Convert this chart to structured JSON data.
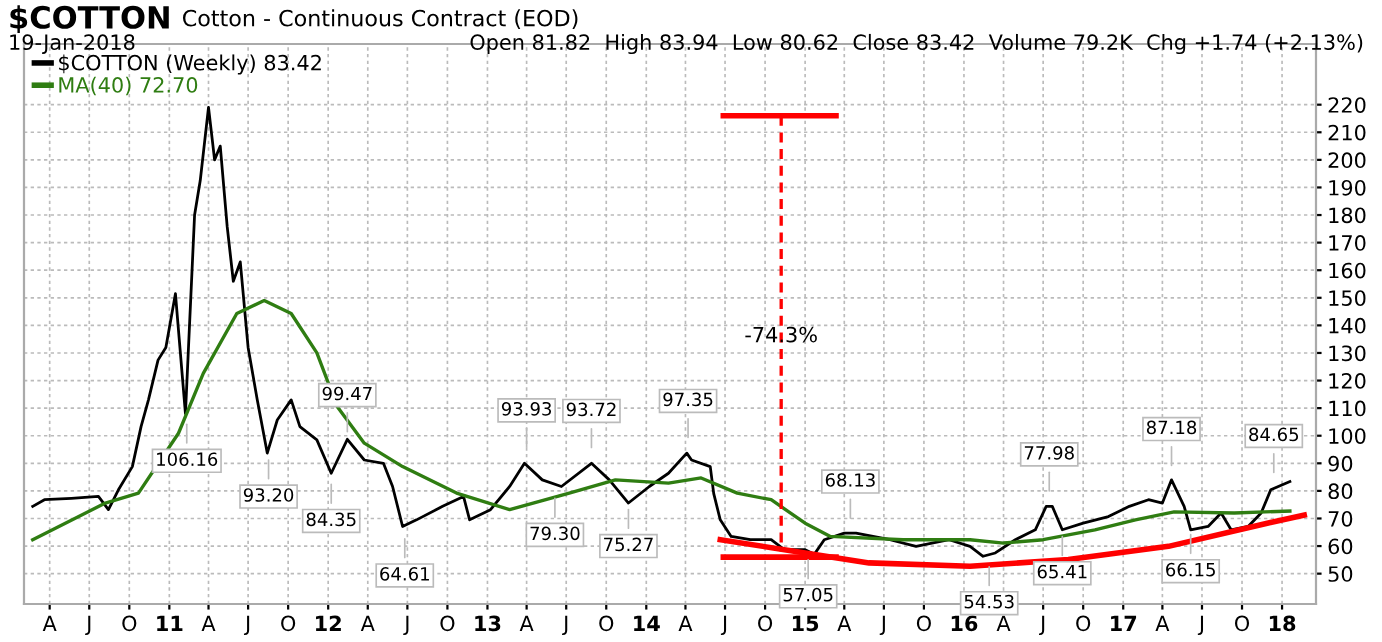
{
  "chart_data": {
    "type": "line",
    "title": "$COTTON",
    "subtitle": "Cotton - Continuous Contract (EOD)",
    "annotations": [
      "19-Jan-2018",
      "Open 81.82  High 83.94  Low 80.62  Close 83.42  Volume 79.2K  Chg +1.74 (+2.13%)",
      {
        "text": "106.16",
        "x": "2011-02-10",
        "y": 106.16
      },
      {
        "text": "93.20",
        "x": "2011-08-17",
        "y": 93.2
      },
      {
        "text": "84.35",
        "x": "2012-01-08",
        "y": 84.35
      },
      {
        "text": "99.47",
        "x": "2012-02-14",
        "y": 99.47
      },
      {
        "text": "64.61",
        "x": "2012-06-25",
        "y": 64.61
      },
      {
        "text": "93.93",
        "x": "2013-04-01",
        "y": 93.93
      },
      {
        "text": "79.30",
        "x": "2013-06-05",
        "y": 79.3
      },
      {
        "text": "93.72",
        "x": "2013-08-28",
        "y": 93.72
      },
      {
        "text": "75.27",
        "x": "2013-11-21",
        "y": 75.27
      },
      {
        "text": "97.35",
        "x": "2014-04-07",
        "y": 97.35
      },
      {
        "text": "57.05",
        "x": "2015-01-08",
        "y": 57.05
      },
      {
        "text": "68.13",
        "x": "2015-04-15",
        "y": 68.13
      },
      {
        "text": "54.53",
        "x": "2016-02-28",
        "y": 54.53
      },
      {
        "text": "77.98",
        "x": "2016-07-15",
        "y": 77.98
      },
      {
        "text": "65.41",
        "x": "2016-08-14",
        "y": 65.41
      },
      {
        "text": "87.18",
        "x": "2017-04-22",
        "y": 87.18
      },
      {
        "text": "66.15",
        "x": "2017-06-05",
        "y": 66.15
      },
      {
        "text": "84.65",
        "x": "2017-12-13",
        "y": 84.65
      },
      {
        "text": "-74.3%",
        "x": "2014-11-07",
        "y": 136
      }
    ],
    "ylim": [
      39,
      242
    ],
    "yticks": [
      50,
      60,
      70,
      80,
      90,
      100,
      110,
      120,
      130,
      140,
      150,
      160,
      170,
      180,
      190,
      200,
      210,
      220
    ],
    "xlim": [
      "2010-02-01",
      "2018-03-20"
    ],
    "xticks": [
      {
        "value": "2010-04-01",
        "label": "A"
      },
      {
        "value": "2010-07-01",
        "label": "J"
      },
      {
        "value": "2010-10-01",
        "label": "O"
      },
      {
        "value": "2011-01-01",
        "label": "11"
      },
      {
        "value": "2011-04-01",
        "label": "A"
      },
      {
        "value": "2011-07-01",
        "label": "J"
      },
      {
        "value": "2011-10-01",
        "label": "O"
      },
      {
        "value": "2012-01-01",
        "label": "12"
      },
      {
        "value": "2012-04-01",
        "label": "A"
      },
      {
        "value": "2012-07-01",
        "label": "J"
      },
      {
        "value": "2012-10-01",
        "label": "O"
      },
      {
        "value": "2013-01-01",
        "label": "13"
      },
      {
        "value": "2013-04-01",
        "label": "A"
      },
      {
        "value": "2013-07-01",
        "label": "J"
      },
      {
        "value": "2013-10-01",
        "label": "O"
      },
      {
        "value": "2014-01-01",
        "label": "14"
      },
      {
        "value": "2014-04-01",
        "label": "A"
      },
      {
        "value": "2014-07-01",
        "label": "J"
      },
      {
        "value": "2014-10-01",
        "label": "O"
      },
      {
        "value": "2015-01-01",
        "label": "15"
      },
      {
        "value": "2015-04-01",
        "label": "A"
      },
      {
        "value": "2015-07-01",
        "label": "J"
      },
      {
        "value": "2015-10-01",
        "label": "O"
      },
      {
        "value": "2016-01-01",
        "label": "16"
      },
      {
        "value": "2016-04-01",
        "label": "A"
      },
      {
        "value": "2016-07-01",
        "label": "J"
      },
      {
        "value": "2016-10-01",
        "label": "O"
      },
      {
        "value": "2017-01-01",
        "label": "17"
      },
      {
        "value": "2017-04-01",
        "label": "A"
      },
      {
        "value": "2017-07-01",
        "label": "J"
      },
      {
        "value": "2017-10-01",
        "label": "O"
      },
      {
        "value": "2018-01-01",
        "label": "18"
      }
    ],
    "grid": true,
    "legend": "top left",
    "series": [
      {
        "name": "$COTTON (Weekly) 83.42",
        "color": "#000000",
        "x": [
          "2010-02-21",
          "2010-03-20",
          "2010-05-21",
          "2010-07-22",
          "2010-08-14",
          "2010-09-06",
          "2010-10-08",
          "2010-10-28",
          "2010-11-14",
          "2010-12-06",
          "2010-12-24",
          "2011-01-15",
          "2011-02-07",
          "2011-02-28",
          "2011-03-13",
          "2011-04-01",
          "2011-04-15",
          "2011-04-28",
          "2011-05-14",
          "2011-05-28",
          "2011-06-13",
          "2011-07-01",
          "2011-07-22",
          "2011-08-14",
          "2011-09-06",
          "2011-10-08",
          "2011-10-28",
          "2011-12-06",
          "2012-01-08",
          "2012-02-14",
          "2012-03-24",
          "2012-05-07",
          "2012-05-28",
          "2012-06-20",
          "2012-07-22",
          "2012-09-20",
          "2012-11-07",
          "2012-11-21",
          "2013-01-08",
          "2013-02-21",
          "2013-03-27",
          "2013-05-07",
          "2013-06-20",
          "2013-08-28",
          "2013-10-08",
          "2013-11-21",
          "2014-01-08",
          "2014-02-21",
          "2014-04-04",
          "2014-04-15",
          "2014-05-28",
          "2014-06-05",
          "2014-06-20",
          "2014-07-15",
          "2014-08-28",
          "2014-10-15",
          "2014-11-14",
          "2015-01-01",
          "2015-01-22",
          "2015-02-14",
          "2015-04-01",
          "2015-04-28",
          "2015-07-15",
          "2015-09-13",
          "2015-11-28",
          "2016-01-15",
          "2016-02-14",
          "2016-03-13",
          "2016-04-28",
          "2016-06-13",
          "2016-07-08",
          "2016-07-22",
          "2016-08-14",
          "2016-10-01",
          "2016-11-28",
          "2017-01-15",
          "2017-02-28",
          "2017-04-01",
          "2017-04-22",
          "2017-05-21",
          "2017-06-05",
          "2017-07-15",
          "2017-08-14",
          "2017-09-06",
          "2017-10-15",
          "2017-11-14",
          "2017-12-06",
          "2018-01-19"
        ],
        "values": [
          74.4,
          76.8,
          77.3,
          78,
          73.2,
          80.4,
          88.8,
          103.3,
          113,
          127.4,
          132,
          151.5,
          108,
          180,
          192.5,
          219,
          200,
          205,
          175.7,
          156,
          163,
          132,
          113,
          93.7,
          105.7,
          113,
          103.3,
          98.5,
          86.4,
          98.7,
          91.2,
          90,
          81.6,
          67.1,
          69.5,
          74.4,
          78,
          69.5,
          73.2,
          81.6,
          90,
          84,
          81.6,
          90,
          84,
          75.6,
          81.6,
          86.4,
          93.7,
          91.2,
          88.8,
          79,
          69.5,
          63.5,
          62.3,
          62.3,
          58.7,
          58.7,
          57,
          62.3,
          64.7,
          64.7,
          62.3,
          59.9,
          62.3,
          59.9,
          56.3,
          57.5,
          62.3,
          65.9,
          74.4,
          74.4,
          65.9,
          68.3,
          70.7,
          74.4,
          76.8,
          75.6,
          84,
          74.4,
          65.9,
          67.1,
          72,
          65.9,
          67.1,
          72,
          80.4,
          83.4
        ]
      },
      {
        "name": "MA(40) 72.70",
        "color": "#2f7d12",
        "x": [
          "2010-02-21",
          "2010-08-07",
          "2010-10-22",
          "2011-01-22",
          "2011-03-20",
          "2011-06-05",
          "2011-08-07",
          "2011-10-08",
          "2011-12-06",
          "2012-01-22",
          "2012-03-24",
          "2012-06-20",
          "2012-10-22",
          "2013-02-21",
          "2013-07-08",
          "2013-10-22",
          "2014-02-21",
          "2014-05-07",
          "2014-07-29",
          "2014-10-15",
          "2015-01-01",
          "2015-02-28",
          "2015-08-14",
          "2016-01-15",
          "2016-04-01",
          "2016-07-01",
          "2016-10-28",
          "2017-01-29",
          "2017-04-28",
          "2017-09-13",
          "2018-01-19"
        ],
        "values": [
          62.3,
          75.6,
          79.2,
          100.9,
          122.6,
          144.3,
          149,
          144.3,
          130,
          110.5,
          97.3,
          88.8,
          79.2,
          73.2,
          79.2,
          84,
          82.8,
          84.7,
          79.2,
          76.8,
          68.3,
          63.5,
          62.3,
          62.3,
          61.1,
          62.3,
          65.9,
          69.5,
          72.4,
          72,
          72.7
        ]
      },
      {
        "color": "#ff0000",
        "x": [
          "2014-06-20",
          "2015-01-01",
          "2015-05-28",
          "2016-01-15",
          "2016-08-28",
          "2017-04-15",
          "2017-11-28",
          "2018-02-21"
        ],
        "values": [
          62.3,
          57.5,
          53.9,
          52.7,
          55.1,
          59.9,
          68.3,
          71.2
        ]
      },
      {
        "color": "#ff0000",
        "x": [
          "2014-06-27",
          "2015-03-13"
        ],
        "values": [
          216,
          216
        ]
      },
      {
        "color": "#ff0000",
        "x": [
          "2014-06-27",
          "2015-03-13"
        ],
        "values": [
          56,
          56
        ]
      },
      {
        "color": "#ff0000",
        "line_style": "dashed",
        "x": [
          "2014-11-07",
          "2014-11-07"
        ],
        "values": [
          216,
          58
        ]
      }
    ]
  }
}
